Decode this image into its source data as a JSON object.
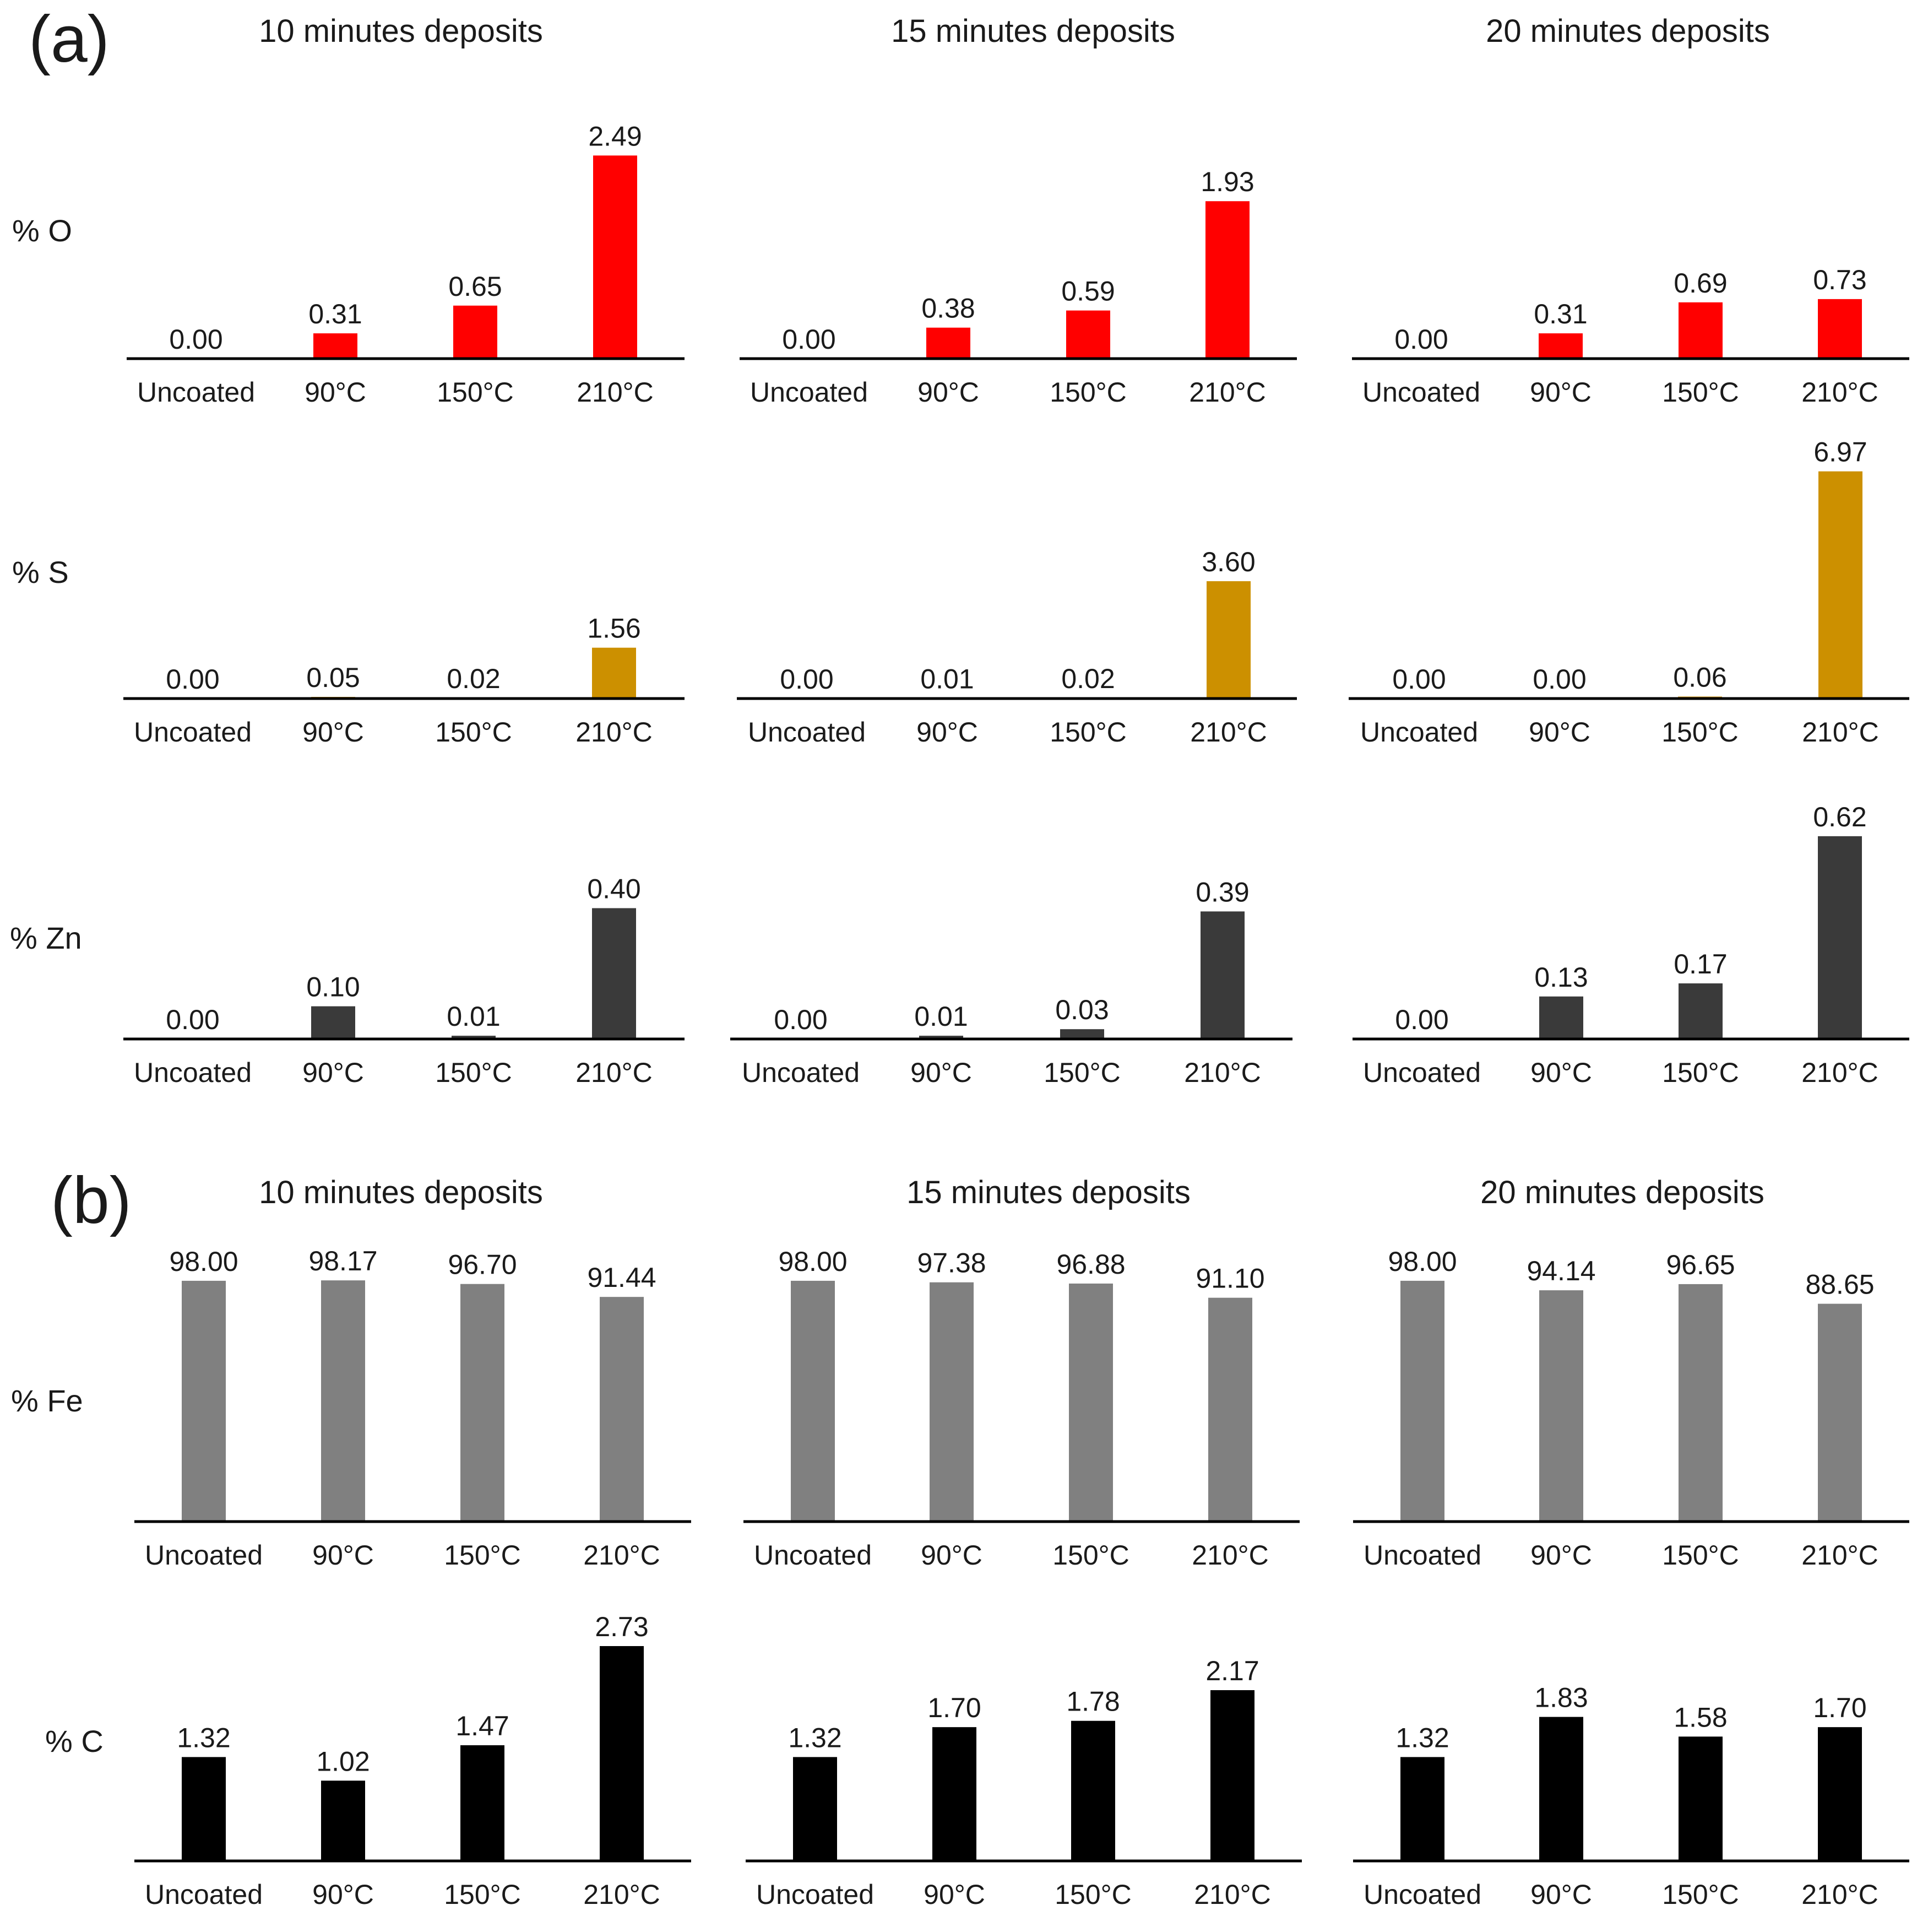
{
  "figure": {
    "panels": [
      {
        "letter": "(a)",
        "column_titles": [
          "10 minutes deposits",
          "15 minutes deposits",
          "20 minutes deposits"
        ],
        "row_labels": [
          "% O",
          "% S",
          "% Zn"
        ]
      },
      {
        "letter": "(b)",
        "column_titles": [
          "10 minutes deposits",
          "15 minutes deposits",
          "20 minutes deposits"
        ],
        "row_labels": [
          "% Fe",
          "% C"
        ]
      }
    ]
  },
  "chart_data": [
    {
      "type": "bar",
      "panel": "(a)",
      "element": "% O",
      "title": "10 minutes deposits",
      "categories": [
        "Uncoated",
        "90°C",
        "150°C",
        "210°C"
      ],
      "values": [
        0.0,
        0.31,
        0.65,
        2.49
      ],
      "value_labels": [
        "0.00",
        "0.31",
        "0.65",
        "2.49"
      ],
      "ylim": [
        0,
        2.6
      ],
      "color": "#ff0000"
    },
    {
      "type": "bar",
      "panel": "(a)",
      "element": "% O",
      "title": "15 minutes deposits",
      "categories": [
        "Uncoated",
        "90°C",
        "150°C",
        "210°C"
      ],
      "values": [
        0.0,
        0.38,
        0.59,
        1.93
      ],
      "value_labels": [
        "0.00",
        "0.38",
        "0.59",
        "1.93"
      ],
      "ylim": [
        0,
        2.6
      ],
      "color": "#ff0000"
    },
    {
      "type": "bar",
      "panel": "(a)",
      "element": "% O",
      "title": "20 minutes deposits",
      "categories": [
        "Uncoated",
        "90°C",
        "150°C",
        "210°C"
      ],
      "values": [
        0.0,
        0.31,
        0.69,
        0.73
      ],
      "value_labels": [
        "0.00",
        "0.31",
        "0.69",
        "0.73"
      ],
      "ylim": [
        0,
        2.6
      ],
      "color": "#ff0000"
    },
    {
      "type": "bar",
      "panel": "(a)",
      "element": "% S",
      "title": "10 minutes deposits",
      "categories": [
        "Uncoated",
        "90°C",
        "150°C",
        "210°C"
      ],
      "values": [
        0.0,
        0.05,
        0.02,
        1.56
      ],
      "value_labels": [
        "0.00",
        "0.05",
        "0.02",
        "1.56"
      ],
      "ylim": [
        0,
        7.2
      ],
      "color": "#cc9000"
    },
    {
      "type": "bar",
      "panel": "(a)",
      "element": "% S",
      "title": "15 minutes deposits",
      "categories": [
        "Uncoated",
        "90°C",
        "150°C",
        "210°C"
      ],
      "values": [
        0.0,
        0.01,
        0.02,
        3.6
      ],
      "value_labels": [
        "0.00",
        "0.01",
        "0.02",
        "3.60"
      ],
      "ylim": [
        0,
        7.2
      ],
      "color": "#cc9000"
    },
    {
      "type": "bar",
      "panel": "(a)",
      "element": "% S",
      "title": "20 minutes deposits",
      "categories": [
        "Uncoated",
        "90°C",
        "150°C",
        "210°C"
      ],
      "values": [
        0.0,
        0.0,
        0.06,
        6.97
      ],
      "value_labels": [
        "0.00",
        "0.00",
        "0.06",
        "6.97"
      ],
      "ylim": [
        0,
        7.2
      ],
      "color": "#cc9000"
    },
    {
      "type": "bar",
      "panel": "(a)",
      "element": "% Zn",
      "title": "10 minutes deposits",
      "categories": [
        "Uncoated",
        "90°C",
        "150°C",
        "210°C"
      ],
      "values": [
        0.0,
        0.1,
        0.01,
        0.4
      ],
      "value_labels": [
        "0.00",
        "0.10",
        "0.01",
        "0.40"
      ],
      "ylim": [
        0,
        0.64
      ],
      "color": "#3a3a3a"
    },
    {
      "type": "bar",
      "panel": "(a)",
      "element": "% Zn",
      "title": "15 minutes deposits",
      "categories": [
        "Uncoated",
        "90°C",
        "150°C",
        "210°C"
      ],
      "values": [
        0.0,
        0.01,
        0.03,
        0.39
      ],
      "value_labels": [
        "0.00",
        "0.01",
        "0.03",
        "0.39"
      ],
      "ylim": [
        0,
        0.64
      ],
      "color": "#3a3a3a"
    },
    {
      "type": "bar",
      "panel": "(a)",
      "element": "% Zn",
      "title": "20 minutes deposits",
      "categories": [
        "Uncoated",
        "90°C",
        "150°C",
        "210°C"
      ],
      "values": [
        0.0,
        0.13,
        0.17,
        0.62
      ],
      "value_labels": [
        "0.00",
        "0.13",
        "0.17",
        "0.62"
      ],
      "ylim": [
        0,
        0.64
      ],
      "color": "#3a3a3a"
    },
    {
      "type": "bar",
      "panel": "(b)",
      "element": "% Fe",
      "title": "10 minutes deposits",
      "categories": [
        "Uncoated",
        "90°C",
        "150°C",
        "210°C"
      ],
      "values": [
        98.0,
        98.17,
        96.7,
        91.44
      ],
      "value_labels": [
        "98.00",
        "98.17",
        "96.70",
        "91.44"
      ],
      "ylim": [
        0,
        100
      ],
      "color": "#808080"
    },
    {
      "type": "bar",
      "panel": "(b)",
      "element": "% Fe",
      "title": "15 minutes deposits",
      "categories": [
        "Uncoated",
        "90°C",
        "150°C",
        "210°C"
      ],
      "values": [
        98.0,
        97.38,
        96.88,
        91.1
      ],
      "value_labels": [
        "98.00",
        "97.38",
        "96.88",
        "91.10"
      ],
      "ylim": [
        0,
        100
      ],
      "color": "#808080"
    },
    {
      "type": "bar",
      "panel": "(b)",
      "element": "% Fe",
      "title": "20 minutes deposits",
      "categories": [
        "Uncoated",
        "90°C",
        "150°C",
        "210°C"
      ],
      "values": [
        98.0,
        94.14,
        96.65,
        88.65
      ],
      "value_labels": [
        "98.00",
        "94.14",
        "96.65",
        "88.65"
      ],
      "ylim": [
        0,
        100
      ],
      "color": "#808080"
    },
    {
      "type": "bar",
      "panel": "(b)",
      "element": "% C",
      "title": "10 minutes deposits",
      "categories": [
        "Uncoated",
        "90°C",
        "150°C",
        "210°C"
      ],
      "values": [
        1.32,
        1.02,
        1.47,
        2.73
      ],
      "value_labels": [
        "1.32",
        "1.02",
        "1.47",
        "2.73"
      ],
      "ylim": [
        0,
        2.8
      ],
      "color": "#000000"
    },
    {
      "type": "bar",
      "panel": "(b)",
      "element": "% C",
      "title": "15 minutes deposits",
      "categories": [
        "Uncoated",
        "90°C",
        "150°C",
        "210°C"
      ],
      "values": [
        1.32,
        1.7,
        1.78,
        2.17
      ],
      "value_labels": [
        "1.32",
        "1.70",
        "1.78",
        "2.17"
      ],
      "ylim": [
        0,
        2.8
      ],
      "color": "#000000"
    },
    {
      "type": "bar",
      "panel": "(b)",
      "element": "% C",
      "title": "20 minutes deposits",
      "categories": [
        "Uncoated",
        "90°C",
        "150°C",
        "210°C"
      ],
      "values": [
        1.32,
        1.83,
        1.58,
        1.7
      ],
      "value_labels": [
        "1.32",
        "1.83",
        "1.58",
        "1.70"
      ],
      "ylim": [
        0,
        2.8
      ],
      "color": "#000000"
    }
  ]
}
